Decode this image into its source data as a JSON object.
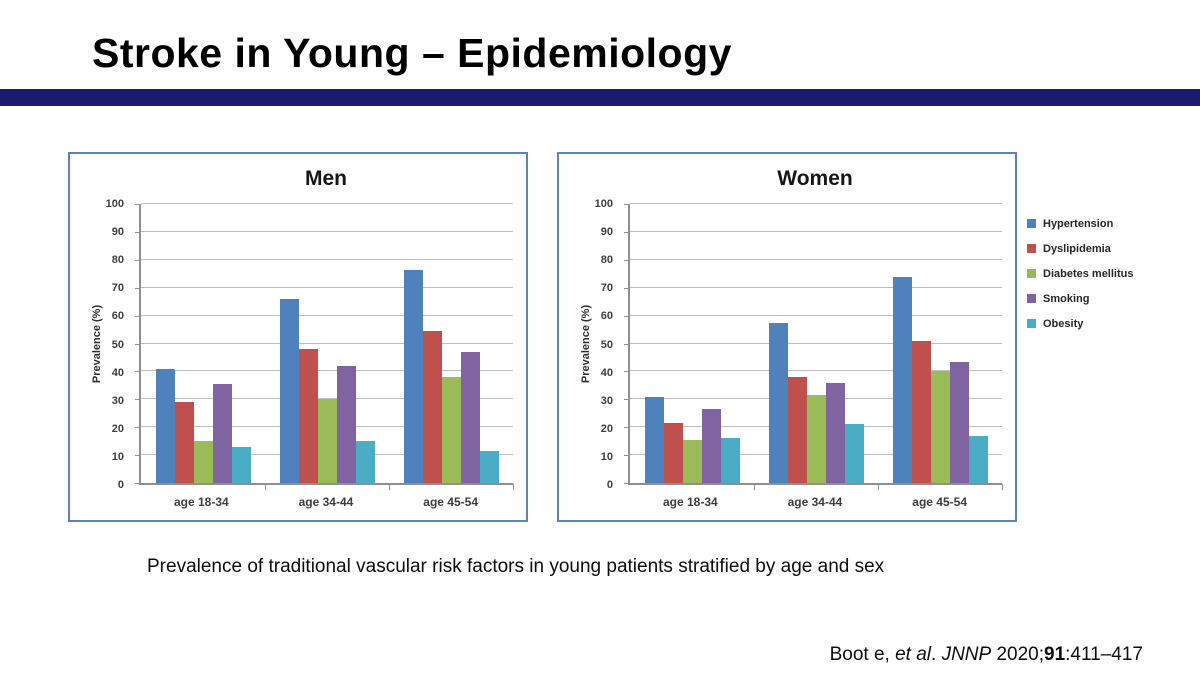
{
  "slide": {
    "title": "Stroke in Young – Epidemiology",
    "caption": "Prevalence of traditional vascular risk factors in young patients stratified by age and sex",
    "citation": {
      "author": "Boot e, ",
      "etal": "et al",
      "sep": ". ",
      "journal": "JNNP",
      "year": " 2020;",
      "volume": "91",
      "pages": ":411–417"
    }
  },
  "colors": {
    "divider_navy": "#1a1a6e",
    "panel_border": "#5b84b9",
    "axis_gray": "#8f8f8f",
    "gridline_gray": "#bfbfbf",
    "hypertension_blue": "#4f81bd",
    "dyslipidemia_red": "#c0504d",
    "diabetes_green": "#9bbb59",
    "smoking_purple": "#8064a2",
    "obesity_teal": "#4bacc6"
  },
  "legend_position": "right of Women chart",
  "chart_data": [
    {
      "type": "bar",
      "title": "Men",
      "xlabel": "",
      "ylabel": "Prevalence (%)",
      "ylim": [
        0,
        100
      ],
      "ytick_interval": 10,
      "grid": true,
      "categories": [
        "age 18-34",
        "age 34-44",
        "age 45-54"
      ],
      "series": [
        {
          "name": "Hypertension",
          "color": "#4f81bd",
          "values": [
            41,
            66,
            76.5
          ]
        },
        {
          "name": "Dyslipidemia",
          "color": "#c0504d",
          "values": [
            29,
            48,
            54.5
          ]
        },
        {
          "name": "Diabetes mellitus",
          "color": "#9bbb59",
          "values": [
            15,
            30,
            38
          ]
        },
        {
          "name": "Smoking",
          "color": "#8064a2",
          "values": [
            35.5,
            42,
            47
          ]
        },
        {
          "name": "Obesity",
          "color": "#4bacc6",
          "values": [
            13,
            15,
            11.5
          ]
        }
      ]
    },
    {
      "type": "bar",
      "title": "Women",
      "xlabel": "",
      "ylabel": "Prevalence (%)",
      "ylim": [
        0,
        100
      ],
      "ytick_interval": 10,
      "grid": true,
      "categories": [
        "age 18-34",
        "age 34-44",
        "age 45-54"
      ],
      "series": [
        {
          "name": "Hypertension",
          "color": "#4f81bd",
          "values": [
            31,
            57.5,
            74
          ]
        },
        {
          "name": "Dyslipidemia",
          "color": "#c0504d",
          "values": [
            21.5,
            38,
            51
          ]
        },
        {
          "name": "Diabetes mellitus",
          "color": "#9bbb59",
          "values": [
            15.5,
            31.5,
            40
          ]
        },
        {
          "name": "Smoking",
          "color": "#8064a2",
          "values": [
            26.5,
            36,
            43.5
          ]
        },
        {
          "name": "Obesity",
          "color": "#4bacc6",
          "values": [
            16,
            21,
            17
          ]
        }
      ]
    }
  ]
}
